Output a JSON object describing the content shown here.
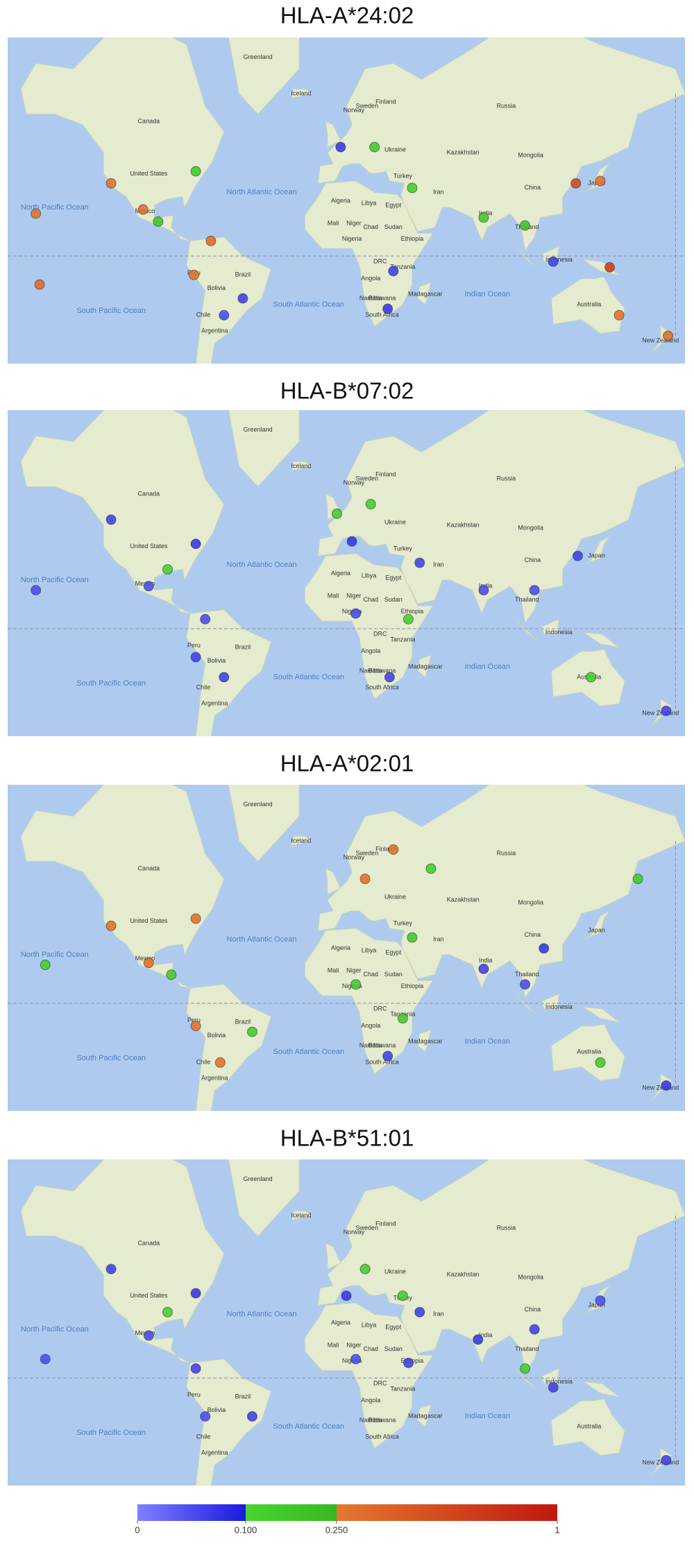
{
  "panels": [
    {
      "title": "HLA-A*24:02",
      "markers": [
        {
          "lon": -120,
          "lat": 36,
          "value": 0.3
        },
        {
          "lon": -103,
          "lat": 24,
          "value": 0.32
        },
        {
          "lon": -75,
          "lat": 41,
          "value": 0.15
        },
        {
          "lon": -95,
          "lat": 18,
          "value": 0.18
        },
        {
          "lon": -67,
          "lat": 8,
          "value": 0.35
        },
        {
          "lon": -76,
          "lat": -10,
          "value": 0.3
        },
        {
          "lon": -50,
          "lat": -22,
          "value": 0.06
        },
        {
          "lon": -60,
          "lat": -30,
          "value": 0.05
        },
        {
          "lon": -160,
          "lat": 22,
          "value": 0.3
        },
        {
          "lon": -158,
          "lat": -15,
          "value": 0.35
        },
        {
          "lon": 2,
          "lat": 50,
          "value": 0.07
        },
        {
          "lon": 20,
          "lat": 50,
          "value": 0.15
        },
        {
          "lon": 40,
          "lat": 34,
          "value": 0.14
        },
        {
          "lon": 30,
          "lat": -8,
          "value": 0.06
        },
        {
          "lon": 27,
          "lat": -27,
          "value": 0.07
        },
        {
          "lon": 78,
          "lat": 20,
          "value": 0.16
        },
        {
          "lon": 100,
          "lat": 16,
          "value": 0.18
        },
        {
          "lon": 127,
          "lat": 36,
          "value": 0.6
        },
        {
          "lon": 115,
          "lat": -3,
          "value": 0.06
        },
        {
          "lon": 145,
          "lat": -6,
          "value": 0.7
        },
        {
          "lon": 150,
          "lat": -30,
          "value": 0.3
        },
        {
          "lon": 176,
          "lat": -39,
          "value": 0.33
        },
        {
          "lon": 140,
          "lat": 37,
          "value": 0.3
        }
      ]
    },
    {
      "title": "HLA-B*07:02",
      "markers": [
        {
          "lon": -120,
          "lat": 50,
          "value": 0.06
        },
        {
          "lon": -75,
          "lat": 41,
          "value": 0.07
        },
        {
          "lon": -100,
          "lat": 22,
          "value": 0.05
        },
        {
          "lon": -90,
          "lat": 30,
          "value": 0.12
        },
        {
          "lon": -70,
          "lat": 5,
          "value": 0.05
        },
        {
          "lon": -60,
          "lat": -25,
          "value": 0.06
        },
        {
          "lon": -75,
          "lat": -15,
          "value": 0.06
        },
        {
          "lon": -160,
          "lat": 20,
          "value": 0.05
        },
        {
          "lon": 0,
          "lat": 52,
          "value": 0.14
        },
        {
          "lon": 18,
          "lat": 55,
          "value": 0.13
        },
        {
          "lon": 8,
          "lat": 42,
          "value": 0.07
        },
        {
          "lon": 44,
          "lat": 33,
          "value": 0.06
        },
        {
          "lon": 10,
          "lat": 8,
          "value": 0.05
        },
        {
          "lon": 38,
          "lat": 5,
          "value": 0.12
        },
        {
          "lon": 28,
          "lat": -25,
          "value": 0.06
        },
        {
          "lon": 78,
          "lat": 20,
          "value": 0.05
        },
        {
          "lon": 105,
          "lat": 20,
          "value": 0.05
        },
        {
          "lon": 128,
          "lat": 36,
          "value": 0.06
        },
        {
          "lon": 135,
          "lat": -25,
          "value": 0.13
        },
        {
          "lon": 175,
          "lat": -40,
          "value": 0.06
        }
      ]
    },
    {
      "title": "HLA-A*02:01",
      "markers": [
        {
          "lon": -120,
          "lat": 38,
          "value": 0.3
        },
        {
          "lon": -75,
          "lat": 41,
          "value": 0.3
        },
        {
          "lon": -100,
          "lat": 21,
          "value": 0.32
        },
        {
          "lon": -88,
          "lat": 15,
          "value": 0.15
        },
        {
          "lon": -75,
          "lat": -12,
          "value": 0.3
        },
        {
          "lon": -62,
          "lat": -30,
          "value": 0.3
        },
        {
          "lon": -45,
          "lat": -15,
          "value": 0.15
        },
        {
          "lon": -155,
          "lat": 20,
          "value": 0.14
        },
        {
          "lon": 15,
          "lat": 55,
          "value": 0.3
        },
        {
          "lon": 30,
          "lat": 63,
          "value": 0.3
        },
        {
          "lon": 50,
          "lat": 58,
          "value": 0.13
        },
        {
          "lon": 40,
          "lat": 33,
          "value": 0.16
        },
        {
          "lon": 10,
          "lat": 10,
          "value": 0.14
        },
        {
          "lon": 35,
          "lat": -8,
          "value": 0.15
        },
        {
          "lon": 27,
          "lat": -27,
          "value": 0.06
        },
        {
          "lon": 78,
          "lat": 18,
          "value": 0.06
        },
        {
          "lon": 110,
          "lat": 28,
          "value": 0.07
        },
        {
          "lon": 100,
          "lat": 10,
          "value": 0.05
        },
        {
          "lon": 160,
          "lat": 55,
          "value": 0.15
        },
        {
          "lon": 140,
          "lat": -30,
          "value": 0.15
        },
        {
          "lon": 175,
          "lat": -40,
          "value": 0.07
        }
      ]
    },
    {
      "title": "HLA-B*51:01",
      "markers": [
        {
          "lon": -120,
          "lat": 50,
          "value": 0.06
        },
        {
          "lon": -75,
          "lat": 41,
          "value": 0.07
        },
        {
          "lon": -100,
          "lat": 22,
          "value": 0.05
        },
        {
          "lon": -90,
          "lat": 33,
          "value": 0.13
        },
        {
          "lon": -75,
          "lat": 5,
          "value": 0.06
        },
        {
          "lon": -45,
          "lat": -20,
          "value": 0.06
        },
        {
          "lon": -70,
          "lat": -20,
          "value": 0.05
        },
        {
          "lon": -155,
          "lat": 10,
          "value": 0.05
        },
        {
          "lon": 15,
          "lat": 50,
          "value": 0.14
        },
        {
          "lon": 35,
          "lat": 40,
          "value": 0.13
        },
        {
          "lon": 44,
          "lat": 33,
          "value": 0.06
        },
        {
          "lon": 5,
          "lat": 40,
          "value": 0.07
        },
        {
          "lon": 10,
          "lat": 10,
          "value": 0.05
        },
        {
          "lon": 38,
          "lat": 8,
          "value": 0.06
        },
        {
          "lon": 75,
          "lat": 20,
          "value": 0.07
        },
        {
          "lon": 105,
          "lat": 25,
          "value": 0.06
        },
        {
          "lon": 100,
          "lat": 5,
          "value": 0.14
        },
        {
          "lon": 140,
          "lat": 38,
          "value": 0.05
        },
        {
          "lon": 115,
          "lat": -5,
          "value": 0.06
        },
        {
          "lon": 175,
          "lat": -40,
          "value": 0.06
        }
      ]
    }
  ],
  "map_labels": [
    "Greenland",
    "Canada",
    "United States",
    "Mexico",
    "North Pacific Ocean",
    "North Atlantic Ocean",
    "South Pacific Ocean",
    "South Atlantic Ocean",
    "Indian Ocean",
    "Brazil",
    "Peru",
    "Bolivia",
    "Chile",
    "Argentina",
    "Iceland",
    "Finland",
    "Sweden",
    "Norway",
    "Russia",
    "Kazakhstan",
    "Mongolia",
    "Ukraine",
    "Turkey",
    "Iran",
    "Algeria",
    "Libya",
    "Egypt",
    "Mali",
    "Niger",
    "Chad",
    "Sudan",
    "Nigeria",
    "Ethiopia",
    "DRC",
    "Tanzania",
    "Angola",
    "Namibia",
    "Botswana",
    "Madagascar",
    "South Africa",
    "India",
    "Thailand",
    "Indonesia",
    "Australia",
    "New Zealand",
    "China",
    "Japan"
  ],
  "legend": {
    "ticks": [
      {
        "value": 0,
        "label": "0"
      },
      {
        "value": 0.1,
        "label": "0.100"
      },
      {
        "value": 0.25,
        "label": "0.250"
      },
      {
        "value": 1,
        "label": "1"
      }
    ],
    "segment_colors": [
      [
        "#8080ff",
        "#1a1ae0"
      ],
      [
        "#48d630",
        "#38b820"
      ],
      [
        "#e5782e",
        "#c0180e"
      ]
    ]
  }
}
